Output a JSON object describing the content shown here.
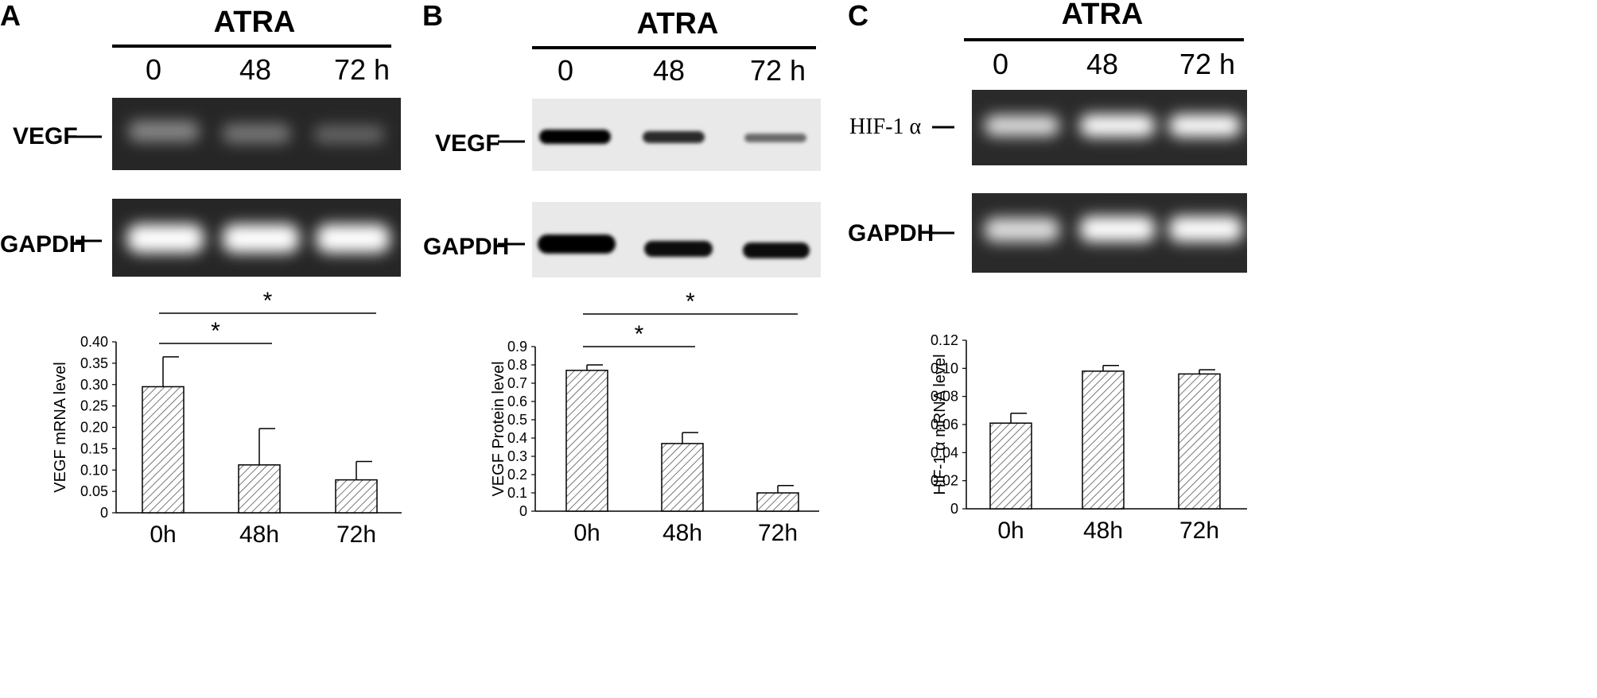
{
  "panels": [
    {
      "letter": "A",
      "treatment": "ATRA",
      "lanes": [
        "0",
        "48",
        "72 h"
      ],
      "blot_type": "gel",
      "bands": [
        {
          "label": "VEGF",
          "intensities": [
            0.45,
            0.38,
            0.3
          ]
        },
        {
          "label": "GAPDH",
          "intensities": [
            1.0,
            1.0,
            1.0
          ]
        }
      ],
      "significance": [
        {
          "from": 0,
          "to": 1,
          "label": "*"
        },
        {
          "from": 0,
          "to": 2,
          "label": "*"
        }
      ]
    },
    {
      "letter": "B",
      "treatment": "ATRA",
      "lanes": [
        "0",
        "48",
        "72 h"
      ],
      "blot_type": "western",
      "bands": [
        {
          "label": "VEGF",
          "intensities": [
            1.0,
            0.8,
            0.45
          ]
        },
        {
          "label": "GAPDH",
          "intensities": [
            1.0,
            0.95,
            0.95
          ]
        }
      ],
      "significance": [
        {
          "from": 0,
          "to": 1,
          "label": "*"
        },
        {
          "from": 0,
          "to": 2,
          "label": "*"
        }
      ]
    },
    {
      "letter": "C",
      "treatment": "ATRA",
      "lanes": [
        "0",
        "48",
        "72 h"
      ],
      "blot_type": "gel",
      "bands": [
        {
          "label": "HIF-1 α",
          "intensities": [
            0.85,
            1.0,
            1.0
          ]
        },
        {
          "label": "GAPDH",
          "intensities": [
            0.85,
            1.0,
            1.0
          ]
        }
      ],
      "significance": []
    }
  ],
  "chart_data": [
    {
      "type": "bar",
      "categories": [
        "0h",
        "48h",
        "72h"
      ],
      "values": [
        0.295,
        0.112,
        0.077
      ],
      "errors": [
        0.07,
        0.085,
        0.043
      ],
      "ylabel": "VEGF mRNA level",
      "ylim": [
        0,
        0.4
      ],
      "yticks": [
        "0",
        "0.05",
        "0.10",
        "0.15",
        "0.20",
        "0.25",
        "0.30",
        "0.35",
        "0.40"
      ],
      "fill": "hatched"
    },
    {
      "type": "bar",
      "categories": [
        "0h",
        "48h",
        "72h"
      ],
      "values": [
        0.77,
        0.37,
        0.1
      ],
      "errors": [
        0.03,
        0.06,
        0.04
      ],
      "ylabel": "VEGF Protein level",
      "ylim": [
        0,
        0.9
      ],
      "yticks": [
        "0",
        "0.1",
        "0.2",
        "0.3",
        "0.4",
        "0.5",
        "0.6",
        "0.7",
        "0.8",
        "0.9"
      ],
      "fill": "hatched"
    },
    {
      "type": "bar",
      "categories": [
        "0h",
        "48h",
        "72h"
      ],
      "values": [
        0.061,
        0.098,
        0.096
      ],
      "errors": [
        0.007,
        0.004,
        0.003
      ],
      "ylabel": "HIF-1 α mRNA level",
      "ylim": [
        0,
        0.12
      ],
      "yticks": [
        "0",
        "0.02",
        "0.04",
        "0.06",
        "0.08",
        "0.10",
        "0.12"
      ],
      "fill": "hatched"
    }
  ]
}
